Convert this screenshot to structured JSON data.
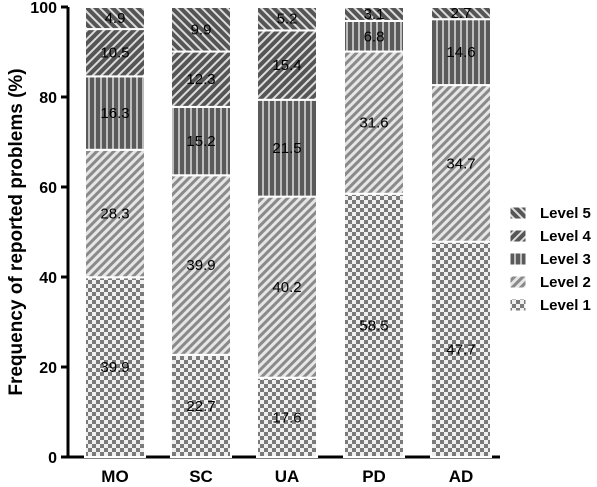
{
  "chart_data": {
    "type": "bar",
    "stacked": true,
    "categories": [
      "MO",
      "SC",
      "UA",
      "PD",
      "AD"
    ],
    "series": [
      {
        "name": "Level 1",
        "values": [
          39.9,
          22.7,
          17.6,
          58.5,
          47.7
        ],
        "pattern": "checker"
      },
      {
        "name": "Level 2",
        "values": [
          28.3,
          39.9,
          40.2,
          31.6,
          34.7
        ],
        "pattern": "diag-light"
      },
      {
        "name": "Level 3",
        "values": [
          16.3,
          15.2,
          21.5,
          6.8,
          14.6
        ],
        "pattern": "vertical"
      },
      {
        "name": "Level 4",
        "values": [
          10.5,
          12.3,
          15.4,
          null,
          null
        ],
        "pattern": "diag-dark"
      },
      {
        "name": "Level 5",
        "values": [
          4.9,
          9.9,
          5.2,
          3.1,
          2.7
        ],
        "pattern": "diag-back"
      }
    ],
    "ylabel": "Frequency of reported problems (%)",
    "xlabel": "",
    "ylim": [
      0,
      100
    ],
    "yticks": [
      0,
      20,
      40,
      60,
      80,
      100
    ],
    "grid": false,
    "legend_position": "right",
    "legend_order": [
      "Level 5",
      "Level 4",
      "Level 3",
      "Level 2",
      "Level 1"
    ]
  }
}
